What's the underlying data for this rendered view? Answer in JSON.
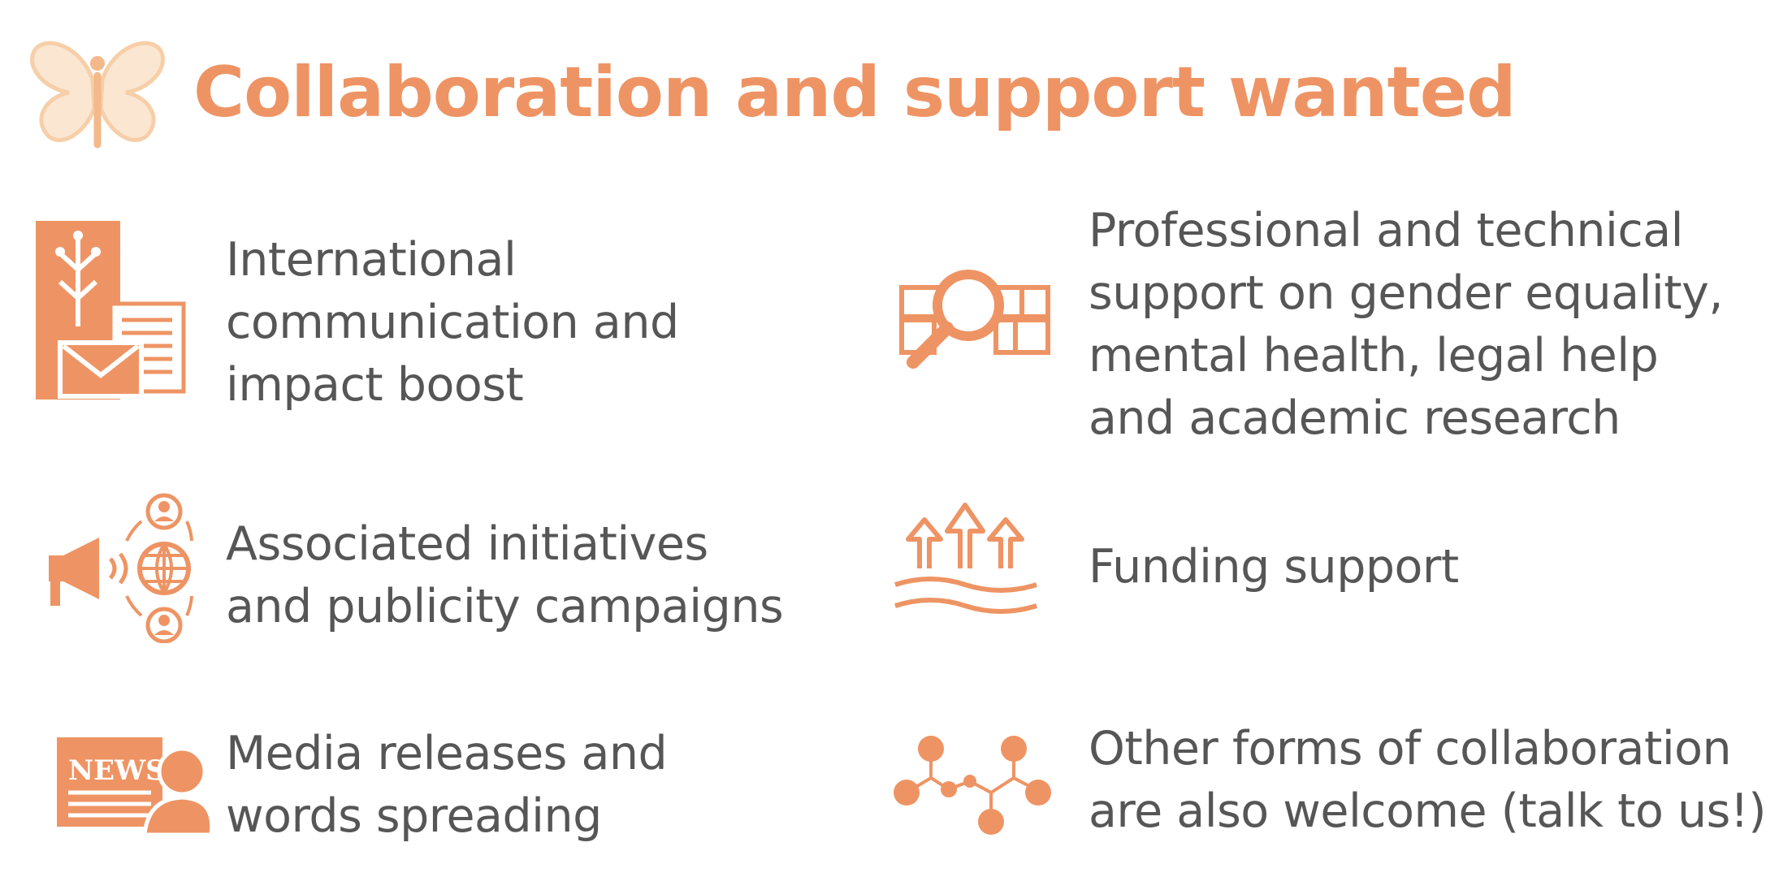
{
  "header": {
    "title": "Collaboration and support wanted",
    "logo_icon": "butterfly-logo"
  },
  "colors": {
    "accent": "#EE9464",
    "logo": "#F6CFA8",
    "text": "#565656",
    "background": "#FFFFFF"
  },
  "items": [
    {
      "icon": "communication-icon",
      "label": "International\ncommunication and\nimpact boost"
    },
    {
      "icon": "research-icon",
      "label": "Professional and technical\nsupport on gender equality,\nmental health, legal help\nand academic research"
    },
    {
      "icon": "campaign-icon",
      "label": "Associated initiatives\nand publicity campaigns"
    },
    {
      "icon": "funding-icon",
      "label": "Funding support"
    },
    {
      "icon": "news-icon",
      "label": "Media releases and\nwords spreading"
    },
    {
      "icon": "network-icon",
      "label": "Other forms of collaboration\nare also welcome (talk to us!)"
    }
  ]
}
